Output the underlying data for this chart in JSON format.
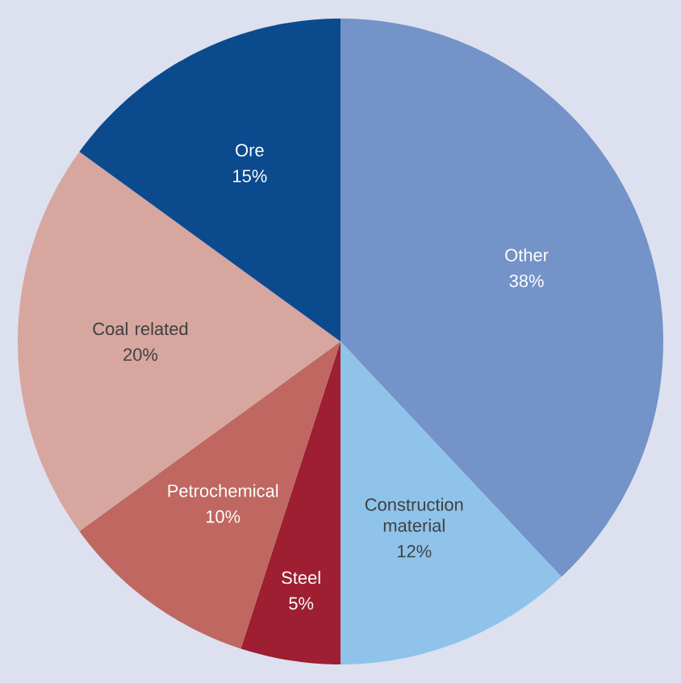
{
  "chart_data": {
    "type": "pie",
    "categories": [
      "Other",
      "Construction material",
      "Steel",
      "Petrochemical",
      "Coal related",
      "Ore"
    ],
    "values": [
      38,
      12,
      5,
      10,
      20,
      15
    ],
    "value_labels": [
      "38%",
      "12%",
      "5%",
      "10%",
      "20%",
      "15%"
    ],
    "colors": [
      "#7393c9",
      "#8fc3ea",
      "#9e1f32",
      "#bf6760",
      "#d6a69f",
      "#0c4a8e"
    ]
  }
}
